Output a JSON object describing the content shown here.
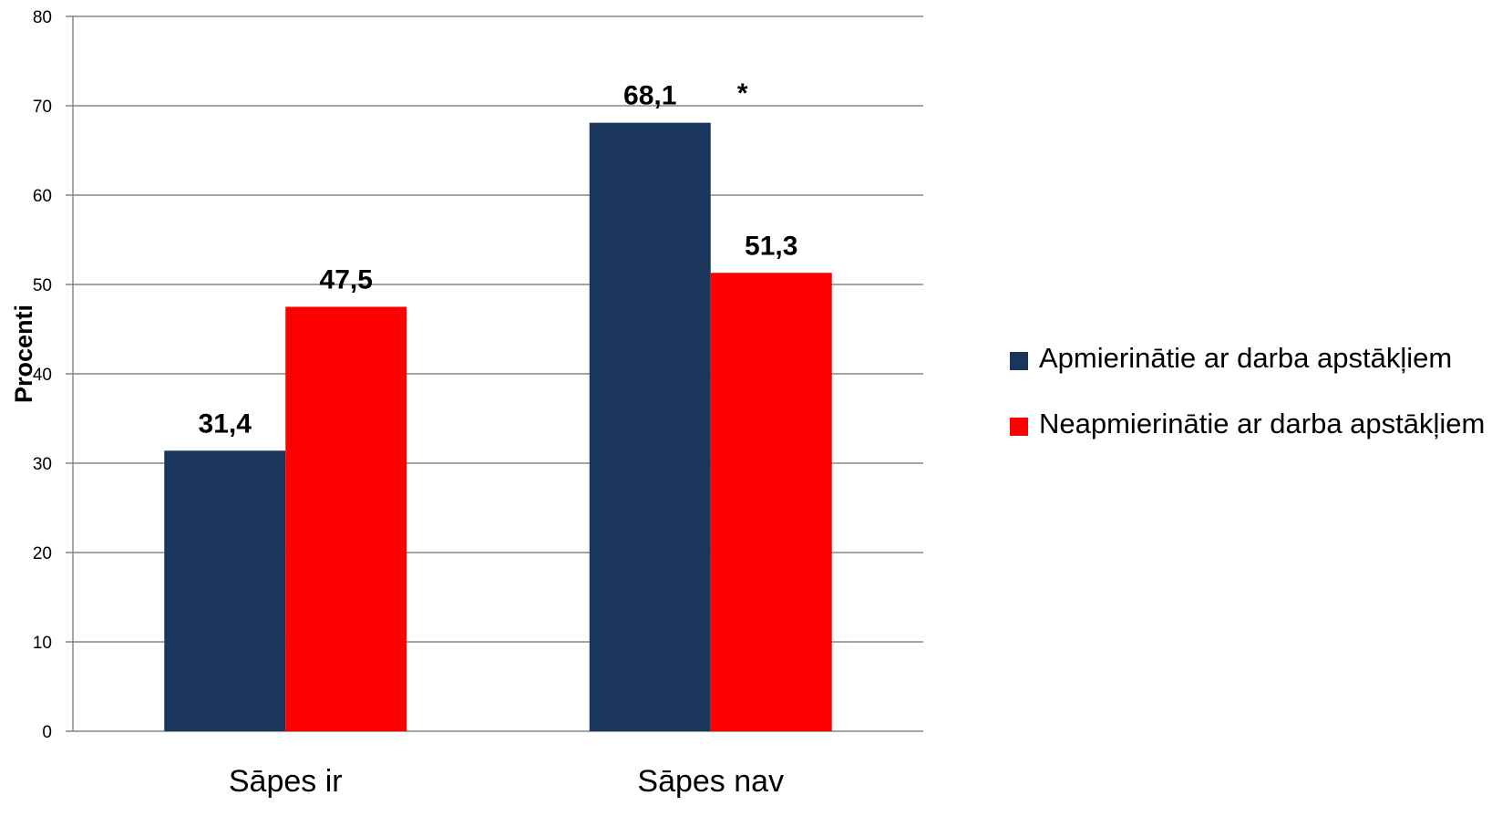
{
  "chart_data": {
    "type": "bar",
    "categories": [
      "Sāpes ir",
      "Sāpes nav"
    ],
    "series": [
      {
        "name": "Apmierinātie ar darba apstākļiem",
        "values": [
          31.4,
          68.1
        ],
        "labels": [
          "31,4",
          "68,1"
        ],
        "color": "#1b365d"
      },
      {
        "name": "Neapmierinātie ar darba apstākļiem",
        "values": [
          47.5,
          51.3
        ],
        "labels": [
          "47,5",
          "51,3"
        ],
        "color": "#ff0000"
      }
    ],
    "ylabel": "Procenti",
    "ylim": [
      0,
      80
    ],
    "yticks": [
      0,
      10,
      20,
      30,
      40,
      50,
      60,
      70,
      80
    ],
    "grid": true,
    "legend_position": "right",
    "annotations": [
      {
        "text": "*",
        "category": "Sāpes nav"
      }
    ]
  }
}
